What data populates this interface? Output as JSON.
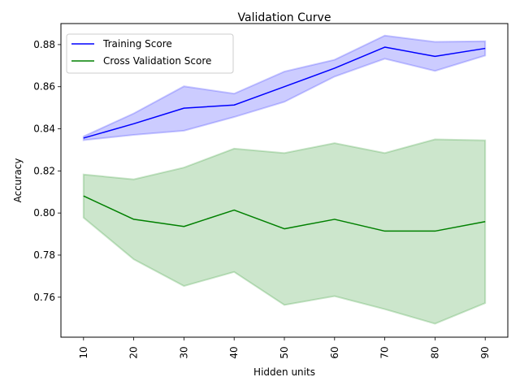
{
  "chart_data": {
    "type": "line",
    "title": "Validation Curve",
    "xlabel": "Hidden units",
    "ylabel": "Accuracy",
    "x": [
      10,
      20,
      30,
      40,
      50,
      60,
      70,
      80,
      90
    ],
    "xticks": [
      "10",
      "20",
      "30",
      "40",
      "50",
      "60",
      "70",
      "80",
      "90"
    ],
    "yticks": [
      "0.76",
      "0.78",
      "0.80",
      "0.82",
      "0.84",
      "0.86",
      "0.88"
    ],
    "xlim": [
      5.5,
      94.5
    ],
    "ylim": [
      0.741,
      0.89
    ],
    "grid": false,
    "legend_position": "upper-left",
    "series": [
      {
        "name": "Training Score",
        "color": "#0000ff",
        "band_color": "#0000ff",
        "values": [
          0.8356,
          0.8424,
          0.8498,
          0.8513,
          0.86,
          0.8688,
          0.8788,
          0.8744,
          0.8782
        ],
        "upper": [
          0.8364,
          0.8473,
          0.8602,
          0.8567,
          0.8672,
          0.8728,
          0.8843,
          0.8813,
          0.8816
        ],
        "lower": [
          0.8346,
          0.8371,
          0.8391,
          0.8456,
          0.8528,
          0.8648,
          0.8733,
          0.8675,
          0.8748
        ]
      },
      {
        "name": "Cross Validation Score",
        "color": "#008000",
        "band_color": "#008000",
        "values": [
          0.8081,
          0.797,
          0.7936,
          0.8014,
          0.7925,
          0.797,
          0.7914,
          0.7914,
          0.7959
        ],
        "upper": [
          0.8183,
          0.816,
          0.8216,
          0.8306,
          0.8285,
          0.8332,
          0.8285,
          0.835,
          0.8345
        ],
        "lower": [
          0.7978,
          0.778,
          0.7653,
          0.772,
          0.7563,
          0.7605,
          0.7543,
          0.7474,
          0.7572
        ]
      }
    ]
  }
}
